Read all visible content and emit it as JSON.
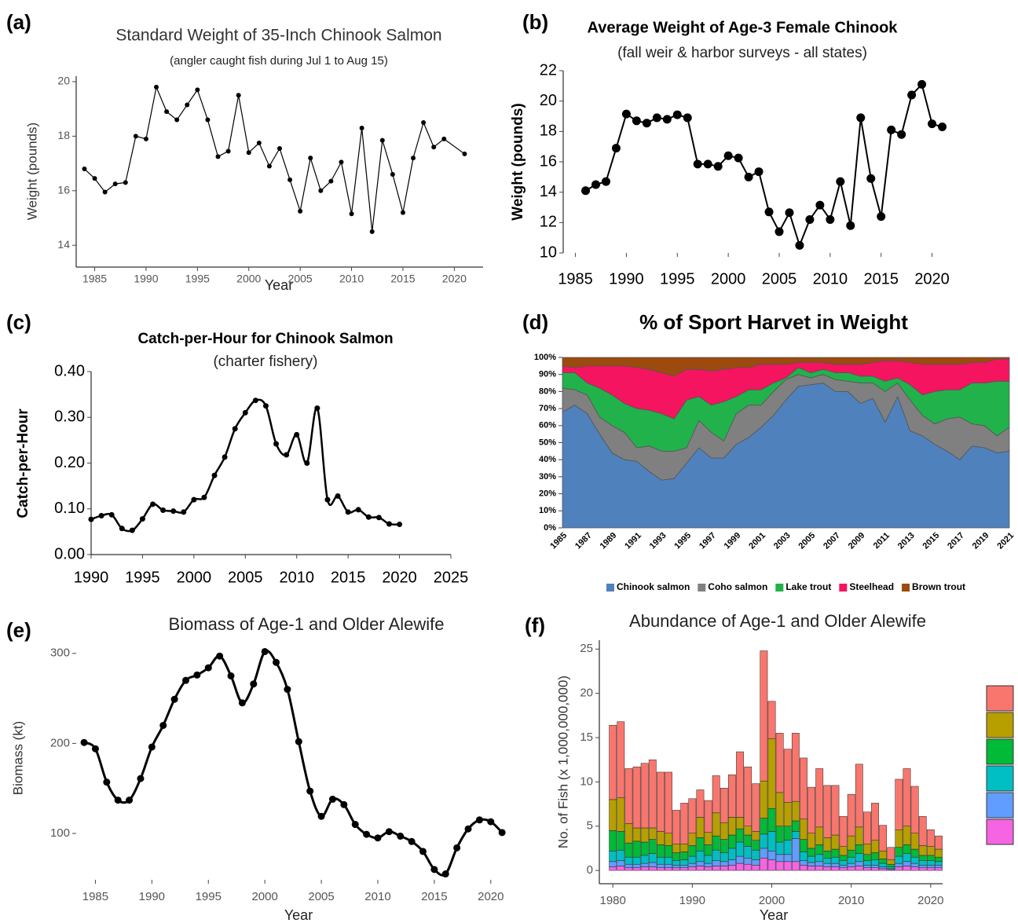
{
  "chart_data": [
    {
      "type": "line",
      "panel_label": "(a)",
      "title": "Standard Weight of 35-Inch Chinook Salmon",
      "subtitle": "(angler caught fish during Jul 1 to Aug 15)",
      "xlabel": "Year",
      "ylabel": "Weight (pounds)",
      "x": [
        1984,
        1985,
        1986,
        1987,
        1988,
        1989,
        1990,
        1991,
        1992,
        1993,
        1994,
        1995,
        1996,
        1997,
        1998,
        1999,
        2000,
        2001,
        2002,
        2003,
        2004,
        2005,
        2006,
        2007,
        2008,
        2009,
        2010,
        2011,
        2012,
        2013,
        2014,
        2015,
        2016,
        2017,
        2018,
        2019,
        2021
      ],
      "values": [
        16.8,
        16.45,
        15.95,
        16.25,
        16.3,
        18.0,
        17.9,
        19.8,
        18.9,
        18.6,
        19.15,
        19.7,
        18.6,
        17.25,
        17.45,
        19.5,
        17.4,
        17.75,
        16.9,
        17.55,
        16.4,
        15.25,
        17.2,
        16.0,
        16.35,
        17.05,
        15.15,
        18.3,
        14.5,
        17.85,
        16.6,
        15.2,
        17.2,
        18.5,
        17.6,
        17.9,
        17.35
      ],
      "color": "#000000",
      "marker": "circle",
      "smooth": false,
      "xlim": [
        1983.2,
        2022.8
      ],
      "ylim": [
        13.2,
        20.2
      ],
      "xticks": [
        1985,
        1990,
        1995,
        2000,
        2005,
        2010,
        2015,
        2020
      ],
      "yticks": [
        14,
        16,
        18,
        20
      ]
    },
    {
      "type": "line",
      "panel_label": "(b)",
      "title": "Average Weight of Age-3 Female Chinook",
      "subtitle": "(fall weir & harbor surveys - all states)",
      "ylabel": "Weight (pounds)",
      "x": [
        1986,
        1987,
        1988,
        1989,
        1990,
        1991,
        1992,
        1993,
        1994,
        1995,
        1996,
        1997,
        1998,
        1999,
        2000,
        2001,
        2002,
        2003,
        2004,
        2005,
        2006,
        2007,
        2008,
        2009,
        2010,
        2011,
        2012,
        2013,
        2014,
        2015,
        2016,
        2017,
        2018,
        2019,
        2020,
        2021
      ],
      "values": [
        14.1,
        14.5,
        14.7,
        16.9,
        19.15,
        18.7,
        18.55,
        18.9,
        18.8,
        19.1,
        18.9,
        15.85,
        15.85,
        15.7,
        16.4,
        16.25,
        15.0,
        15.35,
        12.7,
        11.4,
        12.65,
        10.5,
        12.2,
        13.15,
        12.2,
        14.7,
        11.8,
        18.9,
        14.9,
        12.4,
        18.1,
        17.8,
        20.4,
        21.1,
        18.5,
        18.3
      ],
      "color": "#000000",
      "marker": "circle",
      "smooth": false,
      "xlim": [
        1983.8,
        2022.5
      ],
      "ylim": [
        10,
        22
      ],
      "xticks": [
        1985,
        1990,
        1995,
        2000,
        2005,
        2010,
        2015,
        2020
      ],
      "yticks": [
        10,
        12,
        14,
        16,
        18,
        20,
        22
      ]
    },
    {
      "type": "line",
      "panel_label": "(c)",
      "title": "Catch-per-Hour for Chinook Salmon",
      "subtitle": "(charter fishery)",
      "ylabel": "Catch-per-Hour",
      "x": [
        1990,
        1991,
        1992,
        1993,
        1994,
        1995,
        1996,
        1997,
        1998,
        1999,
        2000,
        2001,
        2002,
        2003,
        2004,
        2005,
        2006,
        2007,
        2008,
        2009,
        2010,
        2011,
        2012,
        2013,
        2014,
        2015,
        2016,
        2017,
        2018,
        2019,
        2020
      ],
      "values": [
        0.077,
        0.085,
        0.087,
        0.057,
        0.053,
        0.078,
        0.11,
        0.097,
        0.095,
        0.093,
        0.12,
        0.125,
        0.173,
        0.213,
        0.275,
        0.31,
        0.337,
        0.325,
        0.242,
        0.218,
        0.262,
        0.2,
        0.32,
        0.12,
        0.128,
        0.093,
        0.098,
        0.082,
        0.081,
        0.067,
        0.066
      ],
      "color": "#000000",
      "marker": "circle",
      "smooth": true,
      "xlim": [
        1990,
        2025
      ],
      "ylim": [
        0,
        0.4
      ],
      "xticks": [
        1990,
        1995,
        2000,
        2005,
        2010,
        2015,
        2020,
        2025
      ],
      "yticks": [
        {
          "value": 0,
          "label": "0.00"
        },
        {
          "value": 0.1,
          "label": "0.10"
        },
        {
          "value": 0.2,
          "label": "0.20"
        },
        {
          "value": 0.3,
          "label": "0.30"
        },
        {
          "value": 0.4,
          "label": "0.40"
        }
      ]
    },
    {
      "type": "area",
      "panel_label": "(d)",
      "title": "% of Sport Harvet in Weight",
      "stacked": true,
      "legend": "bottom",
      "categories": [
        "1985",
        null,
        "1987",
        null,
        "1989",
        null,
        "1991",
        null,
        "1993",
        null,
        "1995",
        null,
        "1997",
        null,
        "1999",
        null,
        "2001",
        null,
        "2003",
        null,
        "2005",
        null,
        "2007",
        null,
        "2009",
        null,
        "2011",
        null,
        "2013",
        null,
        "2015",
        null,
        "2017",
        null,
        "2019",
        null,
        "2021"
      ],
      "series": [
        {
          "name": "Chinook salmon",
          "color": "#4f81bd",
          "values": [
            68,
            72,
            67,
            55,
            44,
            40,
            39,
            33,
            28,
            29,
            38,
            47,
            41,
            41,
            49,
            53,
            59,
            66,
            75,
            83,
            84,
            85,
            80,
            80,
            73,
            76,
            62,
            77,
            57,
            54,
            49,
            45,
            40,
            48,
            47,
            44,
            45
          ]
        },
        {
          "name": "Coho salmon",
          "color": "#808080",
          "values": [
            14,
            9,
            11,
            10,
            16,
            16,
            8,
            15,
            17,
            16,
            9,
            16,
            15,
            10,
            18,
            19,
            13,
            14,
            12,
            7,
            4,
            5,
            7,
            6,
            12,
            9,
            18,
            8,
            18,
            12,
            12,
            19,
            25,
            13,
            13,
            10,
            14
          ]
        },
        {
          "name": "Lake trout",
          "color": "#21b24b",
          "values": [
            9,
            10,
            7,
            17,
            18,
            17,
            23,
            21,
            22,
            19,
            28,
            14,
            16,
            23,
            10,
            9,
            9,
            5,
            1,
            4,
            3,
            3,
            4,
            5,
            4,
            4,
            6,
            3,
            9,
            12,
            19,
            17,
            16,
            24,
            25,
            32,
            27
          ]
        },
        {
          "name": "Steelhead",
          "color": "#f5145f",
          "values": [
            4,
            3,
            10,
            13,
            17,
            22,
            24,
            24,
            24,
            25,
            18,
            16,
            20,
            19,
            17,
            13,
            15,
            11,
            8,
            3,
            6,
            4,
            5,
            5,
            7,
            8,
            12,
            10,
            13,
            18,
            16,
            15,
            15,
            12,
            12,
            13,
            13
          ]
        },
        {
          "name": "Brown trout",
          "color": "#9c4a0e",
          "values": [
            5,
            6,
            5,
            5,
            5,
            5,
            6,
            7,
            9,
            11,
            7,
            7,
            8,
            7,
            6,
            6,
            4,
            4,
            4,
            3,
            3,
            3,
            4,
            4,
            4,
            3,
            2,
            2,
            3,
            4,
            4,
            4,
            4,
            3,
            3,
            1,
            1
          ]
        }
      ],
      "ylim": [
        0,
        100
      ],
      "yticks": [
        {
          "value": 0,
          "label": "0%"
        },
        {
          "value": 10,
          "label": "10%"
        },
        {
          "value": 20,
          "label": "20%"
        },
        {
          "value": 30,
          "label": "30%"
        },
        {
          "value": 40,
          "label": "40%"
        },
        {
          "value": 50,
          "label": "50%"
        },
        {
          "value": 60,
          "label": "60%"
        },
        {
          "value": 70,
          "label": "70%"
        },
        {
          "value": 80,
          "label": "80%"
        },
        {
          "value": 90,
          "label": "90%"
        },
        {
          "value": 100,
          "label": "100%"
        }
      ]
    },
    {
      "type": "line",
      "panel_label": "(e)",
      "title": "Biomass of Age-1 and Older Alewife",
      "xlabel": "Year",
      "ylabel": "Biomass (kt)",
      "x": [
        1984,
        1985,
        1986,
        1987,
        1988,
        1989,
        1990,
        1991,
        1992,
        1993,
        1994,
        1995,
        1996,
        1997,
        1998,
        1999,
        2000,
        2001,
        2002,
        2003,
        2004,
        2005,
        2006,
        2007,
        2008,
        2009,
        2010,
        2011,
        2012,
        2013,
        2014,
        2015,
        2016,
        2017,
        2018,
        2019,
        2020,
        2021
      ],
      "values": [
        201,
        194,
        157,
        137,
        137,
        161,
        196,
        220,
        249,
        270,
        276,
        284,
        297,
        275,
        245,
        266,
        302,
        290,
        260,
        202,
        147,
        119,
        138,
        132,
        110,
        99,
        95,
        102,
        97,
        91,
        80,
        60,
        55,
        84,
        105,
        115,
        113,
        101
      ],
      "color": "#000000",
      "marker": "circle",
      "smooth": true,
      "xlim": [
        1983.3,
        2022.1
      ],
      "ylim": [
        48.5,
        319
      ],
      "xticks": [
        1985,
        1990,
        1995,
        2000,
        2005,
        2010,
        2015,
        2020
      ],
      "yticks": [
        100,
        200,
        300
      ]
    },
    {
      "type": "bar",
      "panel_label": "(f)",
      "title": "Abundance of Age-1 and Older Alewife",
      "xlabel": "Year",
      "ylabel": "No. of Fish (x 1,000,000,000)",
      "stacked": true,
      "legend": "right",
      "x": [
        1980,
        1981,
        1982,
        1983,
        1984,
        1985,
        1986,
        1987,
        1988,
        1989,
        1990,
        1991,
        1992,
        1993,
        1994,
        1995,
        1996,
        1997,
        1998,
        1999,
        2000,
        2001,
        2002,
        2003,
        2004,
        2005,
        2006,
        2007,
        2008,
        2009,
        2010,
        2011,
        2012,
        2013,
        2014,
        2015,
        2016,
        2017,
        2018,
        2019,
        2020,
        2021
      ],
      "series": [
        {
          "color": "#f564e3",
          "values": [
            0.4,
            0.5,
            0.3,
            0.3,
            0.4,
            0.4,
            0.3,
            0.3,
            0.3,
            0.3,
            0.4,
            0.5,
            0.4,
            0.5,
            0.5,
            0.6,
            0.8,
            0.7,
            0.6,
            1.4,
            1.2,
            1.0,
            1.0,
            1.0,
            0.6,
            0.5,
            0.5,
            0.4,
            0.4,
            0.3,
            0.4,
            0.5,
            0.3,
            0.3,
            0.2,
            0.1,
            0.4,
            0.5,
            0.4,
            0.3,
            0.3,
            0.3
          ]
        },
        {
          "color": "#619cff",
          "values": [
            0.6,
            0.6,
            0.4,
            0.4,
            0.4,
            0.5,
            0.4,
            0.4,
            0.3,
            0.3,
            0.4,
            0.5,
            0.4,
            0.6,
            0.5,
            0.6,
            0.8,
            0.7,
            0.6,
            1.1,
            1.0,
            0.8,
            0.8,
            2.6,
            0.5,
            0.4,
            0.5,
            0.4,
            0.4,
            0.3,
            0.4,
            0.5,
            0.3,
            0.3,
            0.2,
            0.1,
            0.4,
            0.5,
            0.4,
            0.3,
            0.3,
            0.3
          ]
        },
        {
          "color": "#00bfc4",
          "values": [
            1.2,
            1.2,
            0.8,
            0.8,
            0.9,
            1.0,
            0.8,
            0.8,
            0.5,
            0.6,
            0.8,
            1.2,
            0.9,
            1.2,
            1.0,
            1.3,
            1.6,
            1.3,
            1.1,
            1.6,
            2.2,
            1.4,
            1.6,
            0.8,
            1.0,
            0.7,
            0.8,
            0.6,
            0.7,
            0.5,
            0.7,
            0.9,
            0.5,
            0.6,
            0.4,
            0.2,
            0.8,
            0.9,
            0.7,
            0.5,
            0.5,
            0.4
          ]
        },
        {
          "color": "#00ba38",
          "values": [
            2.3,
            2.1,
            1.6,
            1.8,
            1.5,
            1.6,
            1.4,
            1.3,
            0.9,
            0.9,
            1.2,
            1.5,
            1.2,
            1.6,
            1.5,
            1.5,
            1.5,
            1.3,
            1.1,
            1.8,
            2.6,
            1.8,
            1.6,
            1.2,
            1.4,
            0.9,
            1.1,
            0.8,
            0.9,
            0.6,
            0.8,
            1.0,
            0.7,
            0.8,
            0.5,
            0.3,
            1.0,
            1.0,
            0.9,
            0.6,
            0.6,
            0.5
          ]
        },
        {
          "color": "#b79f00",
          "values": [
            3.5,
            3.8,
            2.2,
            1.5,
            1.6,
            1.3,
            1.5,
            1.4,
            1.0,
            0.9,
            1.4,
            2.3,
            1.4,
            2.6,
            1.9,
            2.0,
            1.3,
            1.0,
            1.0,
            4.2,
            7.9,
            3.8,
            2.7,
            2.2,
            2.3,
            1.7,
            2.0,
            1.5,
            1.6,
            1.0,
            1.6,
            2.0,
            1.2,
            1.4,
            0.9,
            0.5,
            2.0,
            2.1,
            1.8,
            1.1,
            1.0,
            0.9
          ]
        },
        {
          "color": "#f8766d",
          "values": [
            8.4,
            8.6,
            6.2,
            6.9,
            7.3,
            7.7,
            6.7,
            6.9,
            3.8,
            4.6,
            3.9,
            3.1,
            3.6,
            4.2,
            3.9,
            4.8,
            7.4,
            6.7,
            5.4,
            14.7,
            4.2,
            6.7,
            6.0,
            7.7,
            6.9,
            5.2,
            6.6,
            5.9,
            5.6,
            3.4,
            4.7,
            7.1,
            3.6,
            4.2,
            2.9,
            1.4,
            5.7,
            6.5,
            5.3,
            3.3,
            1.9,
            1.5
          ]
        }
      ],
      "xlim": [
        1978.3,
        2021.5
      ],
      "ylim": [
        -1.5,
        26
      ],
      "xticks": [
        1980,
        1990,
        2000,
        2010,
        2020
      ],
      "yticks": [
        0,
        5,
        10,
        15,
        20,
        25
      ]
    }
  ]
}
